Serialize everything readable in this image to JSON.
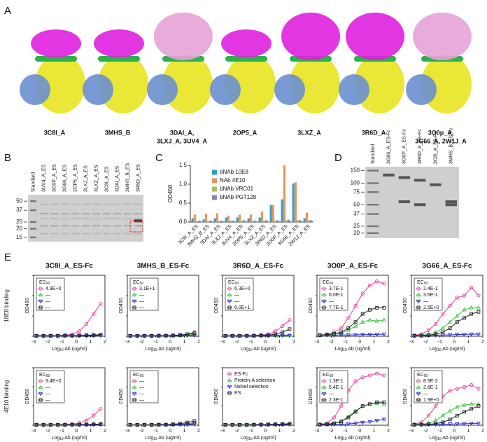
{
  "panel_labels": [
    "A",
    "B",
    "C",
    "D",
    "E"
  ],
  "structures": [
    [
      "3C8I_A"
    ],
    [
      "3MHS_B"
    ],
    [
      "3DAI_A,",
      "3LXJ_A, 3UV4_A"
    ],
    [
      "2OP5_A"
    ],
    [
      "3LXZ_A"
    ],
    [
      "3R6D_A"
    ],
    [
      "3O0p_A,",
      "3G66_A, 2W1J_A"
    ]
  ],
  "gel_b": {
    "lanes": [
      "Standard",
      "3UV4_A_ES",
      "3O0P_A_ES",
      "3G66_A_ES",
      "2OP5_A_ES",
      "3LXJ_A_ES",
      "3LXZ_A_ES",
      "3C8I_A_ES",
      "3DAI_A_ES",
      "3MHS_B_ES",
      "3R6D_A_ES"
    ],
    "markers": [
      50,
      37,
      25,
      20,
      15
    ]
  },
  "chart_data": {
    "type": "bar",
    "ylabel": "OD450",
    "categories": [
      "3C8I_A_ES",
      "3MHS_B_ES",
      "3DAI_A_ES",
      "3LXJ_A_ES",
      "3UV4_A_ES",
      "2OP5_A_ES",
      "3LXZ_A_ES",
      "3R6D_A_ES",
      "3O0P_A_ES",
      "3G66_A_ES",
      "2W1J_A_ES"
    ],
    "series": [
      {
        "name": "bNAb 10E8",
        "color": "#2f9fcf",
        "values": [
          0.1,
          0.07,
          0.1,
          0.12,
          0.12,
          0.1,
          0.12,
          0.45,
          0.6,
          1.02,
          0.1
        ]
      },
      {
        "name": "NAb 4E10",
        "color": "#e8955a",
        "values": [
          0.2,
          0.22,
          0.23,
          0.17,
          0.2,
          0.2,
          0.28,
          0.45,
          1.5,
          1.05,
          0.25
        ]
      },
      {
        "name": "bNAb VRC01",
        "color": "#a6bf5c",
        "values": [
          0.03,
          0.03,
          0.03,
          0.04,
          0.04,
          0.04,
          0.04,
          0.04,
          0.05,
          0.05,
          0.05
        ]
      },
      {
        "name": "bNAb PGT128",
        "color": "#8a84c4",
        "values": [
          0.04,
          0.04,
          0.04,
          0.04,
          0.05,
          0.04,
          0.05,
          0.05,
          0.06,
          0.05,
          0.05
        ]
      }
    ],
    "ylim": [
      0,
      1.5
    ],
    "yticks": [
      {
        "value": 0,
        "label": "0.0"
      },
      0.5,
      {
        "value": 1,
        "label": "1.0"
      },
      1.5
    ]
  },
  "gel_d": {
    "lanes": [
      "Standard",
      "3G66_A_ES-Fc",
      "3O0P_A_ES-Fc",
      "3R6D_A_ES-Fc",
      "3C8I_A_ES-Fc",
      "3MHS_B_ES-Fc"
    ],
    "markers": [
      150,
      100,
      75,
      50,
      37,
      25,
      20
    ]
  },
  "panel_e": {
    "row_labels": [
      "10E8 binding",
      "4E10 binding"
    ],
    "xlabel": {
      "main": "Log",
      "sub": "10",
      "rest": " Ab (ug/ml)"
    },
    "ylabel": "OD450",
    "ec50_title": {
      "main": "EC",
      "sub": "50"
    },
    "series": [
      {
        "name": "ES-Fc",
        "color": "#e8409a",
        "marker": "circle"
      },
      {
        "name": "Protein-A selection",
        "color": "#3cc43c",
        "marker": "triangle-up"
      },
      {
        "name": "Nickel selection",
        "color": "#2a2ae0",
        "marker": "triangle-down"
      },
      {
        "name": "ES",
        "color": "#222222",
        "marker": "square"
      }
    ],
    "x": [
      -2.8,
      -2.3,
      -1.8,
      -1.3,
      -0.8,
      -0.3,
      0.2,
      0.7,
      1.2,
      1.7
    ],
    "xlim": [
      -3,
      2
    ],
    "xticks": [
      -3,
      -2,
      -1,
      0,
      1,
      2
    ],
    "ylim": [
      0,
      3
    ],
    "yticks": [
      0,
      1,
      2,
      3
    ],
    "charts": [
      {
        "title": "3C8I_A_ES-Fc",
        "ec50": [
          "4.9E+0",
          "—",
          "—",
          "—"
        ],
        "values": [
          [
            0.02,
            0.02,
            0.03,
            0.03,
            0.05,
            0.1,
            0.25,
            0.6,
            1.1,
            1.6
          ],
          [
            0.02,
            0.02,
            0.02,
            0.02,
            0.02,
            0.02,
            0.03,
            0.03,
            0.04,
            0.05
          ],
          [
            0.02,
            0.02,
            0.02,
            0.02,
            0.02,
            0.02,
            0.02,
            0.02,
            0.03,
            0.03
          ],
          [
            0.02,
            0.02,
            0.02,
            0.02,
            0.03,
            0.03,
            0.04,
            0.05,
            0.06,
            0.08
          ]
        ]
      },
      {
        "title": "3MHS_B_ES-Fc",
        "ec50": [
          "3.1E+1",
          "—",
          "—",
          "—"
        ],
        "values": [
          [
            0.02,
            0.02,
            0.02,
            0.02,
            0.03,
            0.03,
            0.04,
            0.05,
            0.1,
            0.2
          ],
          [
            0.02,
            0.02,
            0.02,
            0.02,
            0.02,
            0.03,
            0.03,
            0.04,
            0.06,
            0.1
          ],
          [
            0.02,
            0.02,
            0.02,
            0.02,
            0.02,
            0.02,
            0.02,
            0.03,
            0.03,
            0.04
          ],
          [
            0.02,
            0.02,
            0.02,
            0.02,
            0.03,
            0.03,
            0.04,
            0.06,
            0.1,
            0.15
          ]
        ]
      },
      {
        "title": "3R6D_A_ES-Fc",
        "ec50": [
          "6.3E+0",
          "—",
          "—",
          "6.0E+1"
        ],
        "values": [
          [
            0.02,
            0.02,
            0.02,
            0.03,
            0.04,
            0.06,
            0.1,
            0.25,
            0.5,
            0.8
          ],
          [
            0.02,
            0.02,
            0.02,
            0.02,
            0.02,
            0.03,
            0.03,
            0.04,
            0.05,
            0.06
          ],
          [
            0.02,
            0.02,
            0.02,
            0.02,
            0.02,
            0.02,
            0.02,
            0.03,
            0.03,
            0.03
          ],
          [
            0.02,
            0.02,
            0.02,
            0.02,
            0.03,
            0.04,
            0.06,
            0.1,
            0.2,
            0.35
          ]
        ]
      },
      {
        "title": "3O0P_A_ES-Fc",
        "ec50": [
          "3.7E-1",
          "6.0E-1",
          "—",
          "7.7E-1"
        ],
        "values": [
          [
            0.05,
            0.1,
            0.2,
            0.4,
            0.9,
            1.5,
            2.1,
            2.5,
            2.7,
            2.6
          ],
          [
            0.05,
            0.07,
            0.1,
            0.15,
            0.3,
            0.5,
            0.7,
            0.8,
            0.75,
            0.8
          ],
          [
            0.05,
            0.05,
            0.05,
            0.06,
            0.06,
            0.07,
            0.08,
            0.08,
            0.09,
            0.1
          ],
          [
            0.05,
            0.08,
            0.12,
            0.2,
            0.4,
            0.7,
            1.1,
            1.3,
            1.4,
            1.4
          ]
        ]
      },
      {
        "title": "3G66_A_ES-Fc",
        "ec50": [
          "2.4E-1",
          "3.6E-1",
          "—",
          "2.5E+0"
        ],
        "values": [
          [
            0.05,
            0.1,
            0.3,
            0.6,
            1.1,
            1.5,
            1.9,
            2.0,
            2.4,
            2.0
          ],
          [
            0.03,
            0.05,
            0.1,
            0.2,
            0.4,
            0.7,
            1.0,
            1.3,
            1.4,
            1.4
          ],
          [
            0.03,
            0.03,
            0.04,
            0.05,
            0.06,
            0.07,
            0.08,
            0.09,
            0.1,
            0.1
          ],
          [
            0.02,
            0.03,
            0.05,
            0.1,
            0.2,
            0.4,
            0.7,
            0.9,
            1.1,
            1.2
          ]
        ]
      },
      {
        "title": null,
        "ec50": [
          "9.4E+0",
          "—",
          "—",
          "—"
        ],
        "values": [
          [
            0.02,
            0.02,
            0.02,
            0.03,
            0.04,
            0.06,
            0.12,
            0.25,
            0.5,
            0.85
          ],
          [
            0.02,
            0.02,
            0.02,
            0.02,
            0.02,
            0.02,
            0.03,
            0.03,
            0.04,
            0.05
          ],
          [
            0.02,
            0.02,
            0.02,
            0.02,
            0.02,
            0.02,
            0.02,
            0.02,
            0.03,
            0.03
          ],
          [
            0.02,
            0.02,
            0.02,
            0.02,
            0.02,
            0.03,
            0.03,
            0.04,
            0.05,
            0.06
          ]
        ]
      },
      {
        "title": null,
        "ec50": [
          "—",
          "—",
          "—",
          "—"
        ],
        "values": [
          [
            0.02,
            0.02,
            0.02,
            0.02,
            0.03,
            0.03,
            0.04,
            0.05,
            0.08,
            0.12
          ],
          [
            0.02,
            0.02,
            0.02,
            0.02,
            0.02,
            0.03,
            0.03,
            0.04,
            0.05,
            0.08
          ],
          [
            0.02,
            0.02,
            0.02,
            0.02,
            0.02,
            0.02,
            0.02,
            0.03,
            0.03,
            0.04
          ],
          [
            0.02,
            0.02,
            0.02,
            0.02,
            0.03,
            0.03,
            0.05,
            0.08,
            0.14,
            0.22
          ]
        ]
      },
      {
        "title": null,
        "legend": true,
        "values": [
          [
            0.02,
            0.02,
            0.02,
            0.02,
            0.03,
            0.03,
            0.04,
            0.04,
            0.05,
            0.06
          ],
          [
            0.02,
            0.02,
            0.02,
            0.02,
            0.02,
            0.03,
            0.03,
            0.03,
            0.04,
            0.05
          ],
          [
            0.02,
            0.02,
            0.02,
            0.02,
            0.02,
            0.02,
            0.02,
            0.03,
            0.03,
            0.03
          ],
          [
            0.02,
            0.02,
            0.02,
            0.02,
            0.03,
            0.03,
            0.04,
            0.05,
            0.06,
            0.08
          ]
        ]
      },
      {
        "title": null,
        "ec50": [
          "1.3E-1",
          "5.4E-1",
          "—",
          "2.3E-1"
        ],
        "values": [
          [
            0.05,
            0.1,
            0.4,
            1.0,
            1.8,
            2.3,
            2.5,
            2.6,
            2.7,
            2.6
          ],
          [
            0.03,
            0.05,
            0.1,
            0.2,
            0.45,
            0.75,
            1.0,
            1.1,
            1.15,
            1.1
          ],
          [
            0.03,
            0.03,
            0.04,
            0.05,
            0.07,
            0.1,
            0.14,
            0.18,
            0.24,
            0.3
          ],
          [
            0.03,
            0.05,
            0.1,
            0.2,
            0.4,
            0.7,
            1.0,
            1.1,
            1.2,
            1.2
          ]
        ]
      },
      {
        "title": null,
        "ec50": [
          "8.9E-2",
          "2.6E-1",
          "—",
          "1.9E+0"
        ],
        "values": [
          [
            0.05,
            0.15,
            0.5,
            1.0,
            1.5,
            1.8,
            1.9,
            2.0,
            2.1,
            1.9
          ],
          [
            0.03,
            0.05,
            0.1,
            0.25,
            0.5,
            0.75,
            0.95,
            1.05,
            1.1,
            1.1
          ],
          [
            0.03,
            0.03,
            0.04,
            0.04,
            0.05,
            0.06,
            0.07,
            0.08,
            0.09,
            0.1
          ],
          [
            0.02,
            0.03,
            0.05,
            0.08,
            0.15,
            0.3,
            0.5,
            0.7,
            0.85,
            1.0
          ]
        ]
      }
    ]
  }
}
